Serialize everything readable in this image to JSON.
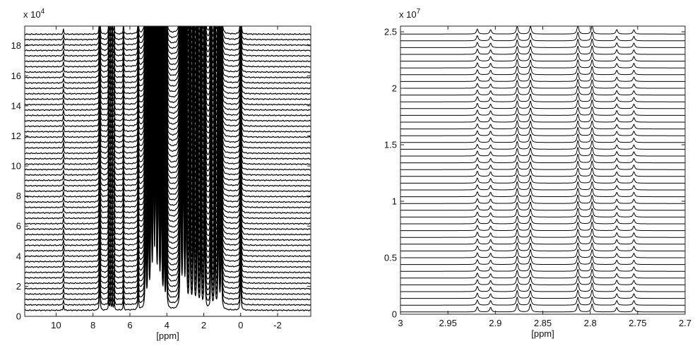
{
  "chart_data": [
    {
      "type": "line",
      "description_kind": "stacked-nmr-spectra",
      "xlabel": "[ppm]",
      "x_reversed": true,
      "xlim": [
        -3.8,
        11.7
      ],
      "ylim": [
        0,
        19.3
      ],
      "y_exponent": "4",
      "xticks": [
        10,
        8,
        6,
        4,
        2,
        0,
        -2
      ],
      "xtick_labels": [
        "10",
        "8",
        "6",
        "4",
        "2",
        "0",
        "-2"
      ],
      "yticks": [
        0,
        2,
        4,
        6,
        8,
        10,
        12,
        14,
        16,
        18
      ],
      "ytick_labels": [
        "0",
        "2",
        "4",
        "6",
        "8",
        "10",
        "12",
        "14",
        "16",
        "18"
      ],
      "trace_count": 52,
      "baseline_start": 0.4,
      "baseline_step": 0.36,
      "peaks": [
        {
          "ppm": 9.6,
          "height": 0.35
        },
        {
          "ppm": 7.65,
          "height": 0.9
        },
        {
          "ppm": 7.62,
          "height": 0.8
        },
        {
          "ppm": 7.15,
          "height": 0.7
        },
        {
          "ppm": 7.05,
          "height": 0.7
        },
        {
          "ppm": 6.95,
          "height": 0.6
        },
        {
          "ppm": 6.85,
          "height": 0.6
        },
        {
          "ppm": 6.35,
          "height": 0.6
        },
        {
          "ppm": 5.55,
          "height": 1.2
        },
        {
          "ppm": 5.15,
          "height": 6
        },
        {
          "ppm": 5.0,
          "height": 9
        },
        {
          "ppm": 4.85,
          "height": 12
        },
        {
          "ppm": 4.72,
          "height": 14
        },
        {
          "ppm": 4.6,
          "height": 16
        },
        {
          "ppm": 4.45,
          "height": 15
        },
        {
          "ppm": 4.3,
          "height": 11
        },
        {
          "ppm": 4.15,
          "height": 5
        },
        {
          "ppm": 4.02,
          "height": 4
        },
        {
          "ppm": 3.25,
          "height": 12
        },
        {
          "ppm": 3.1,
          "height": 14
        },
        {
          "ppm": 2.95,
          "height": 10
        },
        {
          "ppm": 2.75,
          "height": 8
        },
        {
          "ppm": 2.55,
          "height": 9
        },
        {
          "ppm": 2.35,
          "height": 8
        },
        {
          "ppm": 2.15,
          "height": 6
        },
        {
          "ppm": 1.95,
          "height": 7
        },
        {
          "ppm": 1.6,
          "height": 5
        },
        {
          "ppm": 1.4,
          "height": 5
        },
        {
          "ppm": 1.2,
          "height": 8
        },
        {
          "ppm": 1.05,
          "height": 6
        },
        {
          "ppm": 0.0,
          "height": 3
        }
      ]
    },
    {
      "type": "line",
      "description_kind": "stacked-nmr-spectra",
      "xlabel": "[ppm]",
      "x_reversed": true,
      "xlim": [
        2.7,
        3.0
      ],
      "ylim": [
        0,
        2.55
      ],
      "y_exponent": "7",
      "xticks": [
        3,
        2.95,
        2.9,
        2.85,
        2.8,
        2.75,
        2.7
      ],
      "xtick_labels": [
        "3",
        "2.95",
        "2.9",
        "2.85",
        "2.8",
        "2.75",
        "2.7"
      ],
      "yticks": [
        0,
        0.5,
        1,
        1.5,
        2,
        2.5
      ],
      "ytick_labels": [
        "0",
        "0.5",
        "1",
        "1.5",
        "2",
        "2.5"
      ],
      "trace_count": 42,
      "baseline_start": 0.02,
      "baseline_step": 0.06,
      "peaks": [
        {
          "ppm": 2.919,
          "height": 0.045
        },
        {
          "ppm": 2.905,
          "height": 0.04
        },
        {
          "ppm": 2.877,
          "height": 0.07
        },
        {
          "ppm": 2.863,
          "height": 0.07
        },
        {
          "ppm": 2.813,
          "height": 0.075
        },
        {
          "ppm": 2.798,
          "height": 0.075
        },
        {
          "ppm": 2.772,
          "height": 0.04
        },
        {
          "ppm": 2.754,
          "height": 0.04
        }
      ]
    }
  ]
}
